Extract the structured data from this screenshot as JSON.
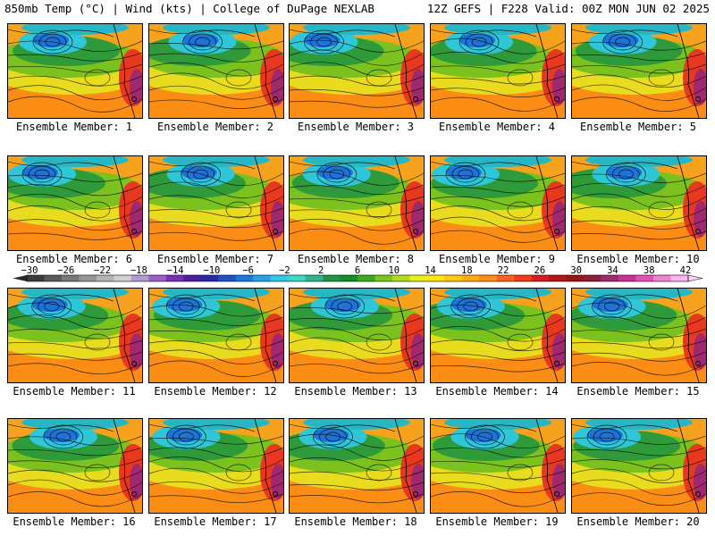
{
  "header": {
    "left_title": "850mb Temp (°C) | Wind (kts) | College of DuPage NEXLAB",
    "right_title": "12Z GEFS | F228 Valid: 00Z MON JUN 02 2025"
  },
  "members": [
    "Ensemble Member: 1",
    "Ensemble Member: 2",
    "Ensemble Member: 3",
    "Ensemble Member: 4",
    "Ensemble Member: 5",
    "Ensemble Member: 6",
    "Ensemble Member: 7",
    "Ensemble Member: 8",
    "Ensemble Member: 9",
    "Ensemble Member: 10",
    "Ensemble Member: 11",
    "Ensemble Member: 12",
    "Ensemble Member: 13",
    "Ensemble Member: 14",
    "Ensemble Member: 15",
    "Ensemble Member: 16",
    "Ensemble Member: 17",
    "Ensemble Member: 18",
    "Ensemble Member: 19",
    "Ensemble Member: 20"
  ],
  "colorbar": {
    "tick_labels": [
      "-30",
      "-26",
      "-22",
      "-18",
      "-14",
      "-10",
      "-6",
      "-2",
      "2",
      "6",
      "10",
      "14",
      "18",
      "22",
      "26",
      "30",
      "34",
      "38",
      "42"
    ],
    "colors": [
      "#3c3c3c",
      "#5a5a5a",
      "#787878",
      "#969696",
      "#b4b4b4",
      "#cfcfcf",
      "#b49bd2",
      "#9a5fc8",
      "#7a2fb4",
      "#4b1fa0",
      "#2a2aa8",
      "#1f4fc8",
      "#1f78dc",
      "#2aa0e6",
      "#32c8e6",
      "#3cd7c8",
      "#32b48c",
      "#1e9646",
      "#148c28",
      "#3caa1e",
      "#78c81e",
      "#b4dc1e",
      "#e6f01e",
      "#ffe614",
      "#ffc814",
      "#ffaa14",
      "#ff8c14",
      "#ff641e",
      "#f03c1e",
      "#d21e1e",
      "#b41414",
      "#961414",
      "#8c1e3c",
      "#a0286e",
      "#c83296",
      "#e650b4",
      "#f082d2",
      "#ffb4f0"
    ]
  }
}
